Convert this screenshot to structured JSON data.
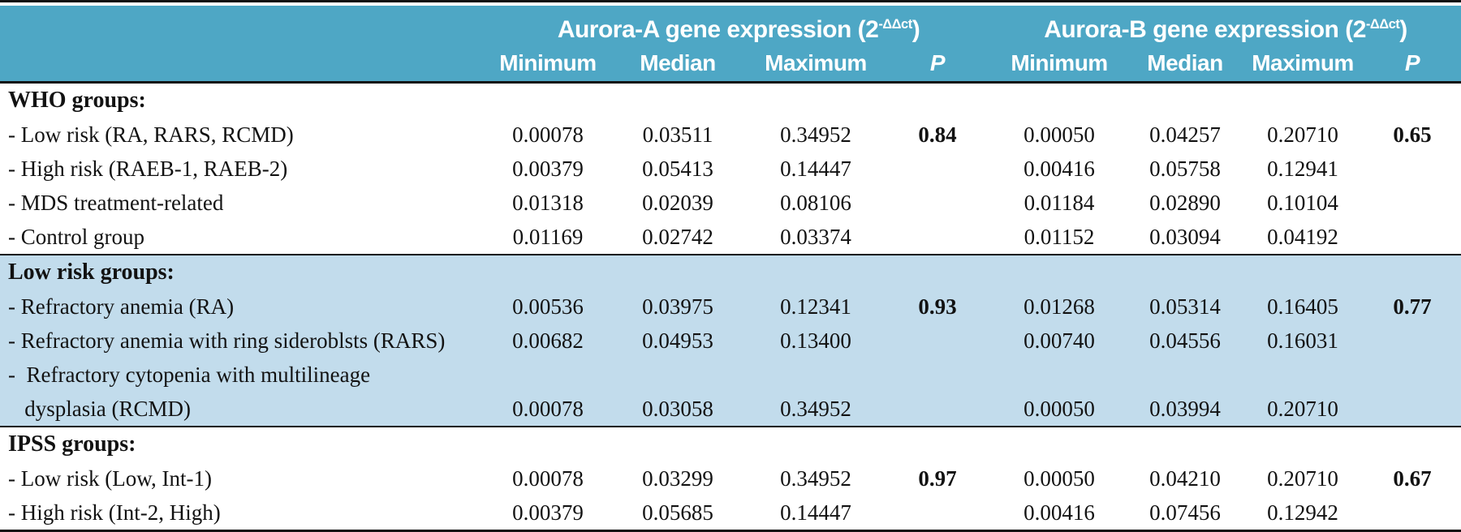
{
  "header": {
    "groupA": {
      "prefix": "Aurora-A gene expression (2",
      "sup": "-ΔΔct",
      "suffix": ")"
    },
    "groupB": {
      "prefix": "Aurora-B gene expression (2",
      "sup": "-ΔΔct",
      "suffix": ")"
    },
    "cols": [
      "Minimum",
      "Median",
      "Maximum",
      "P"
    ]
  },
  "sections": [
    {
      "title": "WHO groups:",
      "bg": "white",
      "rows": [
        {
          "label": "- Low risk (RA, RARS, RCMD)",
          "a": [
            "0.00078",
            "0.03511",
            "0.34952"
          ],
          "pa": "0.84",
          "b": [
            "0.00050",
            "0.04257",
            "0.20710"
          ],
          "pb": "0.65"
        },
        {
          "label": "- High risk (RAEB-1, RAEB-2)",
          "a": [
            "0.00379",
            "0.05413",
            "0.14447"
          ],
          "pa": "",
          "b": [
            "0.00416",
            "0.05758",
            "0.12941"
          ],
          "pb": ""
        },
        {
          "label": "- MDS treatment-related",
          "a": [
            "0.01318",
            "0.02039",
            "0.08106"
          ],
          "pa": "",
          "b": [
            "0.01184",
            "0.02890",
            "0.10104"
          ],
          "pb": ""
        },
        {
          "label": "- Control group",
          "a": [
            "0.01169",
            "0.02742",
            "0.03374"
          ],
          "pa": "",
          "b": [
            "0.01152",
            "0.03094",
            "0.04192"
          ],
          "pb": ""
        }
      ]
    },
    {
      "title": "Low risk groups:",
      "bg": "blue",
      "rows": [
        {
          "label": "- Refractory anemia (RA)",
          "a": [
            "0.00536",
            "0.03975",
            "0.12341"
          ],
          "pa": "0.93",
          "b": [
            "0.01268",
            "0.05314",
            "0.16405"
          ],
          "pb": "0.77"
        },
        {
          "label": "- Refractory anemia with ring sideroblsts (RARS)",
          "a": [
            "0.00682",
            "0.04953",
            "0.13400"
          ],
          "pa": "",
          "b": [
            "0.00740",
            "0.04556",
            "0.16031"
          ],
          "pb": ""
        },
        {
          "label": "-  Refractory cytopenia with multilineage",
          "a": [
            "",
            "",
            ""
          ],
          "pa": "",
          "b": [
            "",
            "",
            ""
          ],
          "pb": ""
        },
        {
          "label": "   dysplasia (RCMD)",
          "a": [
            "0.00078",
            "0.03058",
            "0.34952"
          ],
          "pa": "",
          "b": [
            "0.00050",
            "0.03994",
            "0.20710"
          ],
          "pb": ""
        }
      ]
    },
    {
      "title": "IPSS groups:",
      "bg": "white",
      "rows": [
        {
          "label": "- Low risk (Low, Int-1)",
          "a": [
            "0.00078",
            "0.03299",
            "0.34952"
          ],
          "pa": "0.97",
          "b": [
            "0.00050",
            "0.04210",
            "0.20710"
          ],
          "pb": "0.67"
        },
        {
          "label": "- High risk (Int-2, High)",
          "a": [
            "0.00379",
            "0.05685",
            "0.14447"
          ],
          "pa": "",
          "b": [
            "0.00416",
            "0.07456",
            "0.12942"
          ],
          "pb": ""
        }
      ]
    }
  ],
  "colors": {
    "header_bg": "#4ea7c5",
    "section_alt_bg": "#c2dcec",
    "rule": "#101010",
    "header_text": "#ffffff",
    "body_text": "#121212"
  }
}
